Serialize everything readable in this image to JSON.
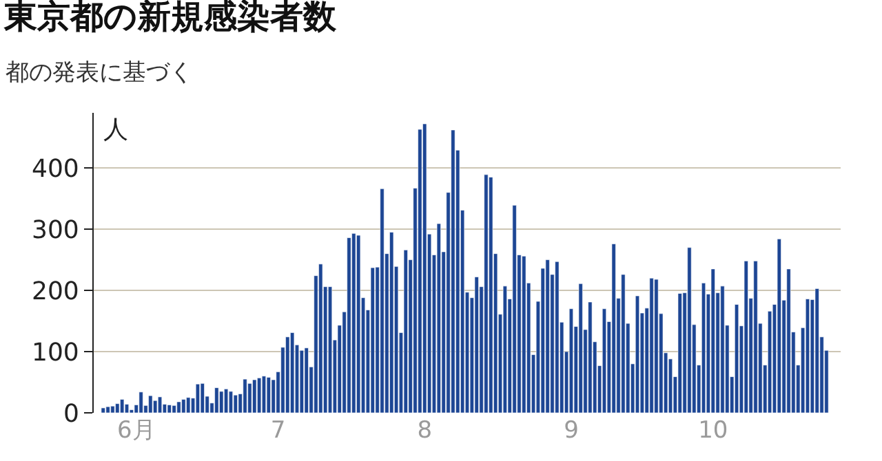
{
  "chart_data": {
    "type": "bar",
    "title": "東京都の新規感染者数",
    "subtitle": "都の発表に基づく",
    "ylabel": "人",
    "x": [
      "--05-25",
      "--05-26",
      "--05-27",
      "--05-28",
      "--05-29",
      "--05-30",
      "--05-31",
      "--06-01",
      "--06-02",
      "--06-03",
      "--06-04",
      "--06-05",
      "--06-06",
      "--06-07",
      "--06-08",
      "--06-09",
      "--06-10",
      "--06-11",
      "--06-12",
      "--06-13",
      "--06-14",
      "--06-15",
      "--06-16",
      "--06-17",
      "--06-18",
      "--06-19",
      "--06-20",
      "--06-21",
      "--06-22",
      "--06-23",
      "--06-24",
      "--06-25",
      "--06-26",
      "--06-27",
      "--06-28",
      "--06-29",
      "--06-30",
      "--07-01",
      "--07-02",
      "--07-03",
      "--07-04",
      "--07-05",
      "--07-06",
      "--07-07",
      "--07-08",
      "--07-09",
      "--07-10",
      "--07-11",
      "--07-12",
      "--07-13",
      "--07-14",
      "--07-15",
      "--07-16",
      "--07-17",
      "--07-18",
      "--07-19",
      "--07-20",
      "--07-21",
      "--07-22",
      "--07-23",
      "--07-24",
      "--07-25",
      "--07-26",
      "--07-27",
      "--07-28",
      "--07-29",
      "--07-30",
      "--07-31",
      "--08-01",
      "--08-02",
      "--08-03",
      "--08-04",
      "--08-05",
      "--08-06",
      "--08-07",
      "--08-08",
      "--08-09",
      "--08-10",
      "--08-11",
      "--08-12",
      "--08-13",
      "--08-14",
      "--08-15",
      "--08-16",
      "--08-17",
      "--08-18",
      "--08-19",
      "--08-20",
      "--08-21",
      "--08-22",
      "--08-23",
      "--08-24",
      "--08-25",
      "--08-26",
      "--08-27",
      "--08-28",
      "--08-29",
      "--08-30",
      "--08-31",
      "--09-01",
      "--09-02",
      "--09-03",
      "--09-04",
      "--09-05",
      "--09-06",
      "--09-07",
      "--09-08",
      "--09-09",
      "--09-10",
      "--09-11",
      "--09-12",
      "--09-13",
      "--09-14",
      "--09-15",
      "--09-16",
      "--09-17",
      "--09-18",
      "--09-19",
      "--09-20",
      "--09-21",
      "--09-22",
      "--09-23",
      "--09-24",
      "--09-25",
      "--09-26",
      "--09-27",
      "--09-28",
      "--09-29",
      "--09-30",
      "--10-01",
      "--10-02",
      "--10-03",
      "--10-04",
      "--10-05",
      "--10-06",
      "--10-07",
      "--10-08",
      "--10-09",
      "--10-10",
      "--10-11",
      "--10-12",
      "--10-13",
      "--10-14",
      "--10-15",
      "--10-16",
      "--10-17",
      "--10-18",
      "--10-19",
      "--10-20",
      "--10-21",
      "--10-22",
      "--10-23",
      "--10-24",
      "--10-25"
    ],
    "values": [
      8,
      10,
      11,
      15,
      22,
      14,
      5,
      13,
      34,
      12,
      28,
      20,
      26,
      14,
      13,
      12,
      18,
      22,
      25,
      24,
      47,
      48,
      27,
      16,
      41,
      35,
      39,
      35,
      29,
      31,
      55,
      48,
      54,
      57,
      60,
      58,
      54,
      67,
      107,
      124,
      131,
      111,
      102,
      106,
      75,
      224,
      243,
      206,
      206,
      119,
      143,
      165,
      286,
      293,
      290,
      188,
      168,
      237,
      238,
      366,
      260,
      295,
      239,
      131,
      266,
      250,
      367,
      463,
      472,
      292,
      258,
      309,
      263,
      360,
      462,
      429,
      331,
      197,
      188,
      222,
      206,
      389,
      385,
      260,
      161,
      207,
      186,
      339,
      258,
      256,
      212,
      95,
      182,
      236,
      250,
      226,
      247,
      148,
      100,
      170,
      141,
      211,
      136,
      181,
      116,
      77,
      170,
      149,
      276,
      187,
      226,
      146,
      80,
      191,
      163,
      171,
      220,
      218,
      162,
      98,
      88,
      59,
      195,
      196,
      270,
      144,
      78,
      212,
      194,
      235,
      196,
      207,
      143,
      59,
      177,
      142,
      248,
      187,
      248,
      146,
      78,
      166,
      177,
      284,
      184,
      235,
      132,
      78,
      139,
      186,
      185,
      203,
      124,
      102
    ],
    "color": "#1d4694",
    "ylim": [
      0,
      490
    ],
    "yticks": [
      0,
      100,
      200,
      300,
      400
    ],
    "xlim": [
      "--05-23",
      "--10-28"
    ],
    "xticks": [
      {
        "value": "--06-01",
        "label": "6月"
      },
      {
        "value": "--07-01",
        "label": "7"
      },
      {
        "value": "--08-01",
        "label": "8"
      },
      {
        "value": "--09-01",
        "label": "9"
      },
      {
        "value": "--10-01",
        "label": "10"
      }
    ],
    "grid": "y"
  }
}
